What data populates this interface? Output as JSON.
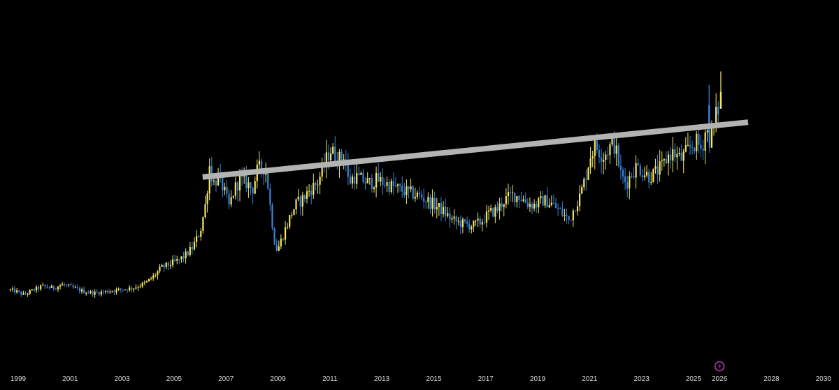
{
  "chart_data": {
    "type": "candlestick",
    "title": "",
    "xlabel": "",
    "ylabel": "",
    "x_tick_labels": [
      "1999",
      "2001",
      "2003",
      "2005",
      "2007",
      "2009",
      "2011",
      "2013",
      "2015",
      "2017",
      "2019",
      "2021",
      "2023",
      "2025",
      "2026",
      "2028",
      "2030"
    ],
    "x_tick_years": [
      1999,
      2001,
      2003,
      2005,
      2007,
      2009,
      2011,
      2013,
      2015,
      2017,
      2019,
      2021,
      2023,
      2025,
      2026,
      2028,
      2030
    ],
    "xlim": [
      1998.3,
      2030.6
    ],
    "ylim": [
      0,
      100
    ],
    "grid": false,
    "legend": "none",
    "colors": {
      "background": "#000000",
      "up": "#f5e663",
      "down": "#3b82d6",
      "trendline": "#b3b3b3",
      "tick_text": "#d8d8d8",
      "indicator": "#c438c4"
    },
    "price_path": [
      [
        1998.7,
        18.5
      ],
      [
        1999.0,
        18.0
      ],
      [
        1999.3,
        17.0
      ],
      [
        1999.7,
        18.5
      ],
      [
        2000.0,
        19.5
      ],
      [
        2000.4,
        19.0
      ],
      [
        2000.8,
        20.0
      ],
      [
        2001.2,
        19.0
      ],
      [
        2001.6,
        18.0
      ],
      [
        2002.0,
        17.5
      ],
      [
        2002.5,
        18.0
      ],
      [
        2003.0,
        18.5
      ],
      [
        2003.5,
        19.0
      ],
      [
        2004.0,
        20.5
      ],
      [
        2004.3,
        22.5
      ],
      [
        2004.6,
        25.0
      ],
      [
        2004.9,
        26.0
      ],
      [
        2005.2,
        27.0
      ],
      [
        2005.5,
        28.5
      ],
      [
        2005.8,
        31.0
      ],
      [
        2006.1,
        36.0
      ],
      [
        2006.3,
        44.0
      ],
      [
        2006.45,
        55.0
      ],
      [
        2006.6,
        50.0
      ],
      [
        2006.8,
        52.0
      ],
      [
        2007.0,
        48.0
      ],
      [
        2007.2,
        43.0
      ],
      [
        2007.4,
        48.0
      ],
      [
        2007.6,
        51.0
      ],
      [
        2007.9,
        50.0
      ],
      [
        2008.1,
        48.0
      ],
      [
        2008.3,
        54.0
      ],
      [
        2008.5,
        55.0
      ],
      [
        2008.65,
        53.0
      ],
      [
        2008.8,
        42.0
      ],
      [
        2008.95,
        33.0
      ],
      [
        2009.05,
        30.0
      ],
      [
        2009.2,
        33.0
      ],
      [
        2009.4,
        37.0
      ],
      [
        2009.6,
        41.0
      ],
      [
        2009.8,
        44.0
      ],
      [
        2010.0,
        45.0
      ],
      [
        2010.3,
        48.0
      ],
      [
        2010.6,
        50.0
      ],
      [
        2010.9,
        56.0
      ],
      [
        2011.1,
        60.0
      ],
      [
        2011.3,
        58.0
      ],
      [
        2011.5,
        57.0
      ],
      [
        2011.65,
        59.0
      ],
      [
        2011.8,
        50.0
      ],
      [
        2012.0,
        52.0
      ],
      [
        2012.3,
        51.0
      ],
      [
        2012.6,
        50.0
      ],
      [
        2012.9,
        51.0
      ],
      [
        2013.2,
        50.0
      ],
      [
        2013.5,
        49.0
      ],
      [
        2013.8,
        48.0
      ],
      [
        2014.2,
        47.0
      ],
      [
        2014.6,
        46.0
      ],
      [
        2015.0,
        44.0
      ],
      [
        2015.4,
        42.0
      ],
      [
        2015.8,
        39.0
      ],
      [
        2016.2,
        38.0
      ],
      [
        2016.6,
        37.5
      ],
      [
        2016.9,
        38.5
      ],
      [
        2017.2,
        41.0
      ],
      [
        2017.5,
        42.0
      ],
      [
        2017.8,
        45.0
      ],
      [
        2018.1,
        46.5
      ],
      [
        2018.4,
        46.0
      ],
      [
        2018.7,
        44.0
      ],
      [
        2019.0,
        43.5
      ],
      [
        2019.3,
        45.0
      ],
      [
        2019.6,
        44.0
      ],
      [
        2019.9,
        42.0
      ],
      [
        2020.1,
        40.5
      ],
      [
        2020.3,
        39.0
      ],
      [
        2020.5,
        43.0
      ],
      [
        2020.7,
        46.0
      ],
      [
        2020.9,
        51.0
      ],
      [
        2021.1,
        58.0
      ],
      [
        2021.3,
        61.0
      ],
      [
        2021.6,
        58.0
      ],
      [
        2021.8,
        60.0
      ],
      [
        2022.0,
        62.0
      ],
      [
        2022.15,
        58.0
      ],
      [
        2022.3,
        52.0
      ],
      [
        2022.5,
        50.0
      ],
      [
        2022.7,
        53.0
      ],
      [
        2022.9,
        55.0
      ],
      [
        2023.2,
        53.0
      ],
      [
        2023.4,
        52.0
      ],
      [
        2023.6,
        53.0
      ],
      [
        2023.9,
        55.0
      ],
      [
        2024.1,
        58.0
      ],
      [
        2024.3,
        59.0
      ],
      [
        2024.6,
        57.0
      ],
      [
        2024.8,
        59.0
      ],
      [
        2025.0,
        61.0
      ],
      [
        2025.2,
        62.0
      ],
      [
        2025.4,
        60.0
      ],
      [
        2025.55,
        66.0
      ],
      [
        2025.7,
        63.0
      ],
      [
        2025.85,
        66.0
      ],
      [
        2026.0,
        72.0
      ]
    ],
    "trendline": {
      "start": [
        2006.1,
        51.8
      ],
      "end": [
        2027.1,
        68.0
      ],
      "label": ""
    },
    "spikes": [
      {
        "year": 2025.6,
        "high": 79.0
      },
      {
        "year": 2026.05,
        "high": 83.0
      }
    ],
    "indicator_icon": "lightning-badge-icon"
  }
}
